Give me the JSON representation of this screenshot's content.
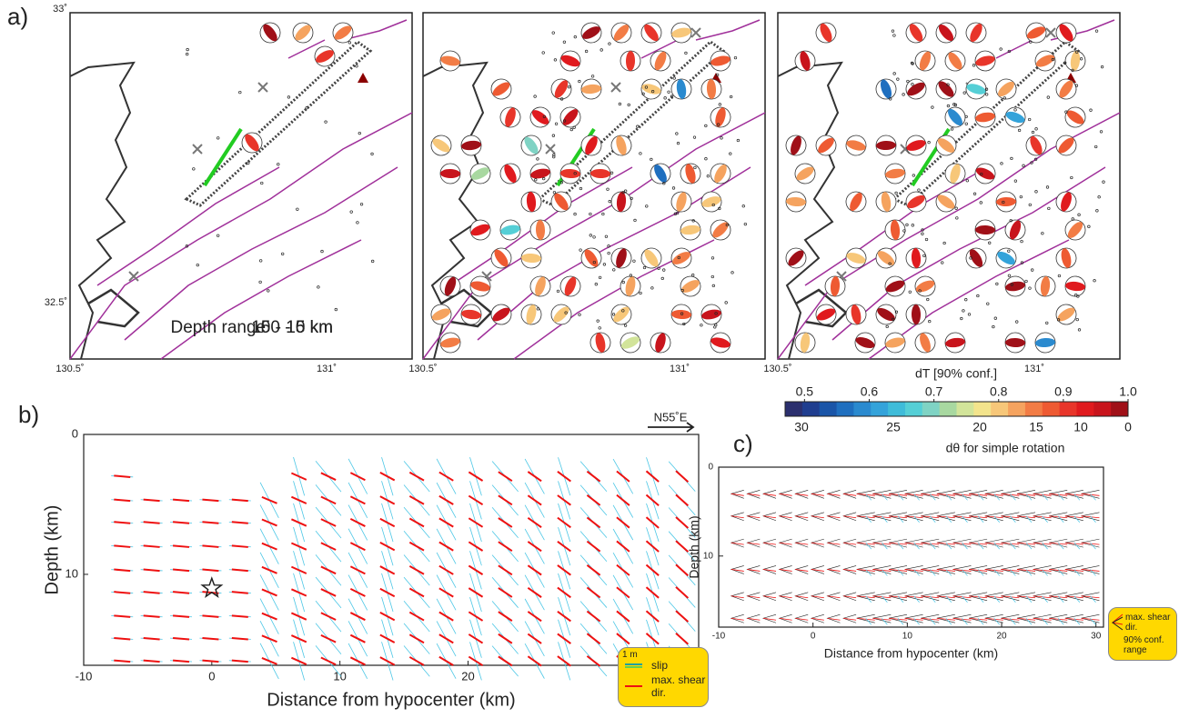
{
  "panel_labels": [
    "a)",
    "b)",
    "c)"
  ],
  "maps": [
    {
      "label": "Depth range 0 - 5 km"
    },
    {
      "label": "5 - 10 km"
    },
    {
      "label": "10 - 15 km"
    }
  ],
  "map_axes": {
    "lat_labels": [
      "33˚",
      "32.5˚"
    ],
    "lon_labels": [
      "130.5˚",
      "131˚"
    ]
  },
  "colorbar": {
    "title": "dT [90% conf.]",
    "lim": [
      0.47,
      1.0
    ],
    "ticks": [
      0.5,
      0.6,
      0.7,
      0.8,
      0.9,
      {
        "value": 1.0,
        "label": "1.0"
      }
    ],
    "bottom_ticks": [
      30,
      25,
      20,
      15,
      10,
      0
    ],
    "bottom_label": "dθ for simple rotation",
    "colors": [
      "#2b2f6e",
      "#1f3d8f",
      "#1a55a8",
      "#1f6fbf",
      "#2a8acf",
      "#34a3da",
      "#3fbcd9",
      "#55cfd6",
      "#7fd3c4",
      "#a8d8a0",
      "#d2e49a",
      "#f3e48c",
      "#f7c779",
      "#f5a35f",
      "#f27c45",
      "#ee5a32",
      "#e8352a",
      "#e01a1e",
      "#c8141c",
      "#a01018"
    ]
  },
  "chart_b": {
    "xlabel": "Distance from hypocenter (km)",
    "ylabel": "Depth (km)",
    "xlim": [
      -10,
      38
    ],
    "ylim": [
      0,
      16.5
    ],
    "xticks": [
      -10,
      0,
      10,
      20
    ],
    "yticks": [
      0,
      10
    ],
    "direction": "N55˚E",
    "hypocenter_x": 0,
    "hypocenter_depth": 11,
    "legend": {
      "scale": "1 m",
      "items": [
        "slip",
        "max. shear dir."
      ]
    }
  },
  "chart_c": {
    "xlabel": "Distance from hypocenter (km)",
    "ylabel": "Depth (km)",
    "xlim": [
      -10,
      30.8
    ],
    "ylim": [
      0,
      18
    ],
    "xticks": [
      -10,
      0,
      10,
      20,
      30
    ],
    "yticks": [
      0,
      10
    ],
    "legend": {
      "items": [
        "max. shear dir.",
        "90% conf. range"
      ]
    }
  }
}
